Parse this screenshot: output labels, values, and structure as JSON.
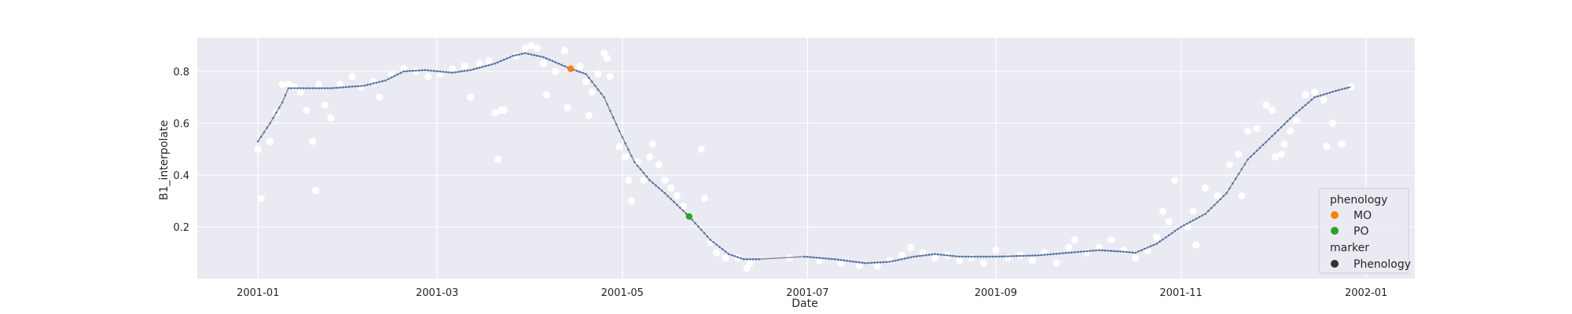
{
  "chart_data": {
    "type": "scatter",
    "title": "",
    "xlabel": "Date",
    "ylabel": "B1_interpolate",
    "x_ticks": [
      "2001-01",
      "2001-03",
      "2001-05",
      "2001-07",
      "2001-09",
      "2001-11",
      "2002-01"
    ],
    "y_ticks": [
      "0.2",
      "0.4",
      "0.6",
      "0.8"
    ],
    "xlim": [
      "2000-12-12",
      "2002-01-17"
    ],
    "ylim": [
      0.0,
      0.93
    ],
    "grid": true,
    "legend_position": "lower-right",
    "colors": {
      "background": "#eaeaf2",
      "grid": "#ffffff",
      "raw_points": "#ffffff",
      "line": "#7f7f7f",
      "line_markers": "#4c72b0",
      "MO": "#ff7f0e",
      "PO": "#2ca02c",
      "marker_style": "#333333"
    },
    "series": [
      {
        "name": "",
        "kind": "raw_observations",
        "points": [
          [
            "2001-01-01",
            0.5
          ],
          [
            "2001-01-02",
            0.31
          ],
          [
            "2001-01-05",
            0.53
          ],
          [
            "2001-01-07",
            0.64
          ],
          [
            "2001-01-09",
            0.75
          ],
          [
            "2001-01-11",
            0.75
          ],
          [
            "2001-01-13",
            0.74
          ],
          [
            "2001-01-15",
            0.72
          ],
          [
            "2001-01-17",
            0.65
          ],
          [
            "2001-01-19",
            0.53
          ],
          [
            "2001-01-20",
            0.34
          ],
          [
            "2001-01-21",
            0.75
          ],
          [
            "2001-01-23",
            0.67
          ],
          [
            "2001-01-25",
            0.62
          ],
          [
            "2001-01-28",
            0.75
          ],
          [
            "2001-02-01",
            0.78
          ],
          [
            "2001-02-04",
            0.74
          ],
          [
            "2001-02-08",
            0.76
          ],
          [
            "2001-02-10",
            0.7
          ],
          [
            "2001-02-14",
            0.79
          ],
          [
            "2001-02-18",
            0.81
          ],
          [
            "2001-02-22",
            0.8
          ],
          [
            "2001-02-26",
            0.78
          ],
          [
            "2001-03-02",
            0.79
          ],
          [
            "2001-03-06",
            0.81
          ],
          [
            "2001-03-10",
            0.82
          ],
          [
            "2001-03-12",
            0.7
          ],
          [
            "2001-03-15",
            0.83
          ],
          [
            "2001-03-18",
            0.84
          ],
          [
            "2001-03-20",
            0.64
          ],
          [
            "2001-03-21",
            0.46
          ],
          [
            "2001-03-22",
            0.65
          ],
          [
            "2001-03-23",
            0.65
          ],
          [
            "2001-03-27",
            0.86
          ],
          [
            "2001-03-30",
            0.89
          ],
          [
            "2001-04-01",
            0.9
          ],
          [
            "2001-04-03",
            0.89
          ],
          [
            "2001-04-05",
            0.83
          ],
          [
            "2001-04-06",
            0.71
          ],
          [
            "2001-04-09",
            0.8
          ],
          [
            "2001-04-12",
            0.88
          ],
          [
            "2001-04-13",
            0.66
          ],
          [
            "2001-04-14",
            0.81
          ],
          [
            "2001-04-17",
            0.82
          ],
          [
            "2001-04-19",
            0.76
          ],
          [
            "2001-04-20",
            0.63
          ],
          [
            "2001-04-21",
            0.72
          ],
          [
            "2001-04-23",
            0.79
          ],
          [
            "2001-04-25",
            0.87
          ],
          [
            "2001-04-26",
            0.85
          ],
          [
            "2001-04-27",
            0.78
          ],
          [
            "2001-04-30",
            0.51
          ],
          [
            "2001-05-02",
            0.47
          ],
          [
            "2001-05-03",
            0.38
          ],
          [
            "2001-05-04",
            0.3
          ],
          [
            "2001-05-06",
            0.45
          ],
          [
            "2001-05-08",
            0.38
          ],
          [
            "2001-05-10",
            0.47
          ],
          [
            "2001-05-11",
            0.52
          ],
          [
            "2001-05-13",
            0.44
          ],
          [
            "2001-05-15",
            0.38
          ],
          [
            "2001-05-17",
            0.35
          ],
          [
            "2001-05-19",
            0.32
          ],
          [
            "2001-05-21",
            0.28
          ],
          [
            "2001-05-23",
            0.24
          ],
          [
            "2001-05-27",
            0.5
          ],
          [
            "2001-05-28",
            0.31
          ],
          [
            "2001-05-30",
            0.14
          ],
          [
            "2001-06-01",
            0.1
          ],
          [
            "2001-06-04",
            0.08
          ],
          [
            "2001-06-08",
            0.08
          ],
          [
            "2001-06-11",
            0.04
          ],
          [
            "2001-06-12",
            0.06
          ],
          [
            "2001-06-25",
            0.08
          ],
          [
            "2001-07-05",
            0.07
          ],
          [
            "2001-07-12",
            0.06
          ],
          [
            "2001-07-18",
            0.05
          ],
          [
            "2001-07-24",
            0.05
          ],
          [
            "2001-07-28",
            0.07
          ],
          [
            "2001-08-01",
            0.09
          ],
          [
            "2001-08-04",
            0.12
          ],
          [
            "2001-08-08",
            0.1
          ],
          [
            "2001-08-12",
            0.08
          ],
          [
            "2001-08-16",
            0.09
          ],
          [
            "2001-08-20",
            0.07
          ],
          [
            "2001-08-24",
            0.08
          ],
          [
            "2001-08-28",
            0.06
          ],
          [
            "2001-09-01",
            0.11
          ],
          [
            "2001-09-05",
            0.08
          ],
          [
            "2001-09-09",
            0.09
          ],
          [
            "2001-09-13",
            0.07
          ],
          [
            "2001-09-17",
            0.1
          ],
          [
            "2001-09-21",
            0.06
          ],
          [
            "2001-09-25",
            0.12
          ],
          [
            "2001-09-27",
            0.15
          ],
          [
            "2001-10-01",
            0.1
          ],
          [
            "2001-10-05",
            0.12
          ],
          [
            "2001-10-09",
            0.15
          ],
          [
            "2001-10-13",
            0.11
          ],
          [
            "2001-10-17",
            0.08
          ],
          [
            "2001-10-21",
            0.11
          ],
          [
            "2001-10-24",
            0.16
          ],
          [
            "2001-10-26",
            0.26
          ],
          [
            "2001-10-28",
            0.22
          ],
          [
            "2001-10-30",
            0.38
          ],
          [
            "2001-11-03",
            0.2
          ],
          [
            "2001-11-05",
            0.26
          ],
          [
            "2001-11-06",
            0.13
          ],
          [
            "2001-11-09",
            0.35
          ],
          [
            "2001-11-13",
            0.32
          ],
          [
            "2001-11-17",
            0.44
          ],
          [
            "2001-11-20",
            0.48
          ],
          [
            "2001-11-21",
            0.32
          ],
          [
            "2001-11-23",
            0.57
          ],
          [
            "2001-11-26",
            0.58
          ],
          [
            "2001-11-29",
            0.67
          ],
          [
            "2001-12-01",
            0.65
          ],
          [
            "2001-12-02",
            0.47
          ],
          [
            "2001-12-04",
            0.48
          ],
          [
            "2001-12-05",
            0.52
          ],
          [
            "2001-12-07",
            0.57
          ],
          [
            "2001-12-09",
            0.61
          ],
          [
            "2001-12-12",
            0.71
          ],
          [
            "2001-12-15",
            0.72
          ],
          [
            "2001-12-18",
            0.69
          ],
          [
            "2001-12-19",
            0.51
          ],
          [
            "2001-12-21",
            0.6
          ],
          [
            "2001-12-24",
            0.52
          ],
          [
            "2001-12-27",
            0.74
          ]
        ]
      },
      {
        "name": "",
        "kind": "interpolated_line",
        "points": [
          [
            "2001-01-01",
            0.53
          ],
          [
            "2001-01-05",
            0.6
          ],
          [
            "2001-01-09",
            0.68
          ],
          [
            "2001-01-11",
            0.735
          ],
          [
            "2001-01-15",
            0.735
          ],
          [
            "2001-01-25",
            0.735
          ],
          [
            "2001-02-05",
            0.745
          ],
          [
            "2001-02-12",
            0.765
          ],
          [
            "2001-02-18",
            0.8
          ],
          [
            "2001-02-25",
            0.805
          ],
          [
            "2001-03-06",
            0.795
          ],
          [
            "2001-03-12",
            0.805
          ],
          [
            "2001-03-20",
            0.83
          ],
          [
            "2001-03-26",
            0.86
          ],
          [
            "2001-03-30",
            0.87
          ],
          [
            "2001-04-05",
            0.855
          ],
          [
            "2001-04-14",
            0.81
          ],
          [
            "2001-04-19",
            0.79
          ],
          [
            "2001-04-25",
            0.7
          ],
          [
            "2001-04-30",
            0.57
          ],
          [
            "2001-05-05",
            0.45
          ],
          [
            "2001-05-10",
            0.38
          ],
          [
            "2001-05-15",
            0.33
          ],
          [
            "2001-05-23",
            0.24
          ],
          [
            "2001-05-30",
            0.15
          ],
          [
            "2001-06-05",
            0.095
          ],
          [
            "2001-06-10",
            0.075
          ],
          [
            "2001-06-15",
            0.075
          ],
          [
            "2001-06-30",
            0.085
          ],
          [
            "2001-07-10",
            0.075
          ],
          [
            "2001-07-20",
            0.06
          ],
          [
            "2001-07-28",
            0.065
          ],
          [
            "2001-08-05",
            0.085
          ],
          [
            "2001-08-12",
            0.095
          ],
          [
            "2001-08-20",
            0.085
          ],
          [
            "2001-09-01",
            0.085
          ],
          [
            "2001-09-15",
            0.09
          ],
          [
            "2001-09-25",
            0.1
          ],
          [
            "2001-10-05",
            0.11
          ],
          [
            "2001-10-12",
            0.105
          ],
          [
            "2001-10-17",
            0.1
          ],
          [
            "2001-10-24",
            0.135
          ],
          [
            "2001-11-01",
            0.2
          ],
          [
            "2001-11-09",
            0.25
          ],
          [
            "2001-11-16",
            0.33
          ],
          [
            "2001-11-23",
            0.46
          ],
          [
            "2001-12-01",
            0.55
          ],
          [
            "2001-12-08",
            0.63
          ],
          [
            "2001-12-15",
            0.7
          ],
          [
            "2001-12-22",
            0.725
          ],
          [
            "2001-12-27",
            0.74
          ]
        ]
      },
      {
        "name": "MO",
        "kind": "phenology",
        "points": [
          [
            "2001-04-14",
            0.81
          ]
        ]
      },
      {
        "name": "PO",
        "kind": "phenology",
        "points": [
          [
            "2001-05-23",
            0.24
          ]
        ]
      }
    ],
    "legend": {
      "hue_title": "phenology",
      "hue_items": [
        {
          "label": "MO",
          "color": "#ff7f0e"
        },
        {
          "label": "PO",
          "color": "#2ca02c"
        }
      ],
      "style_title": "marker",
      "style_items": [
        {
          "label": "Phenology",
          "color": "#333333"
        }
      ]
    }
  }
}
